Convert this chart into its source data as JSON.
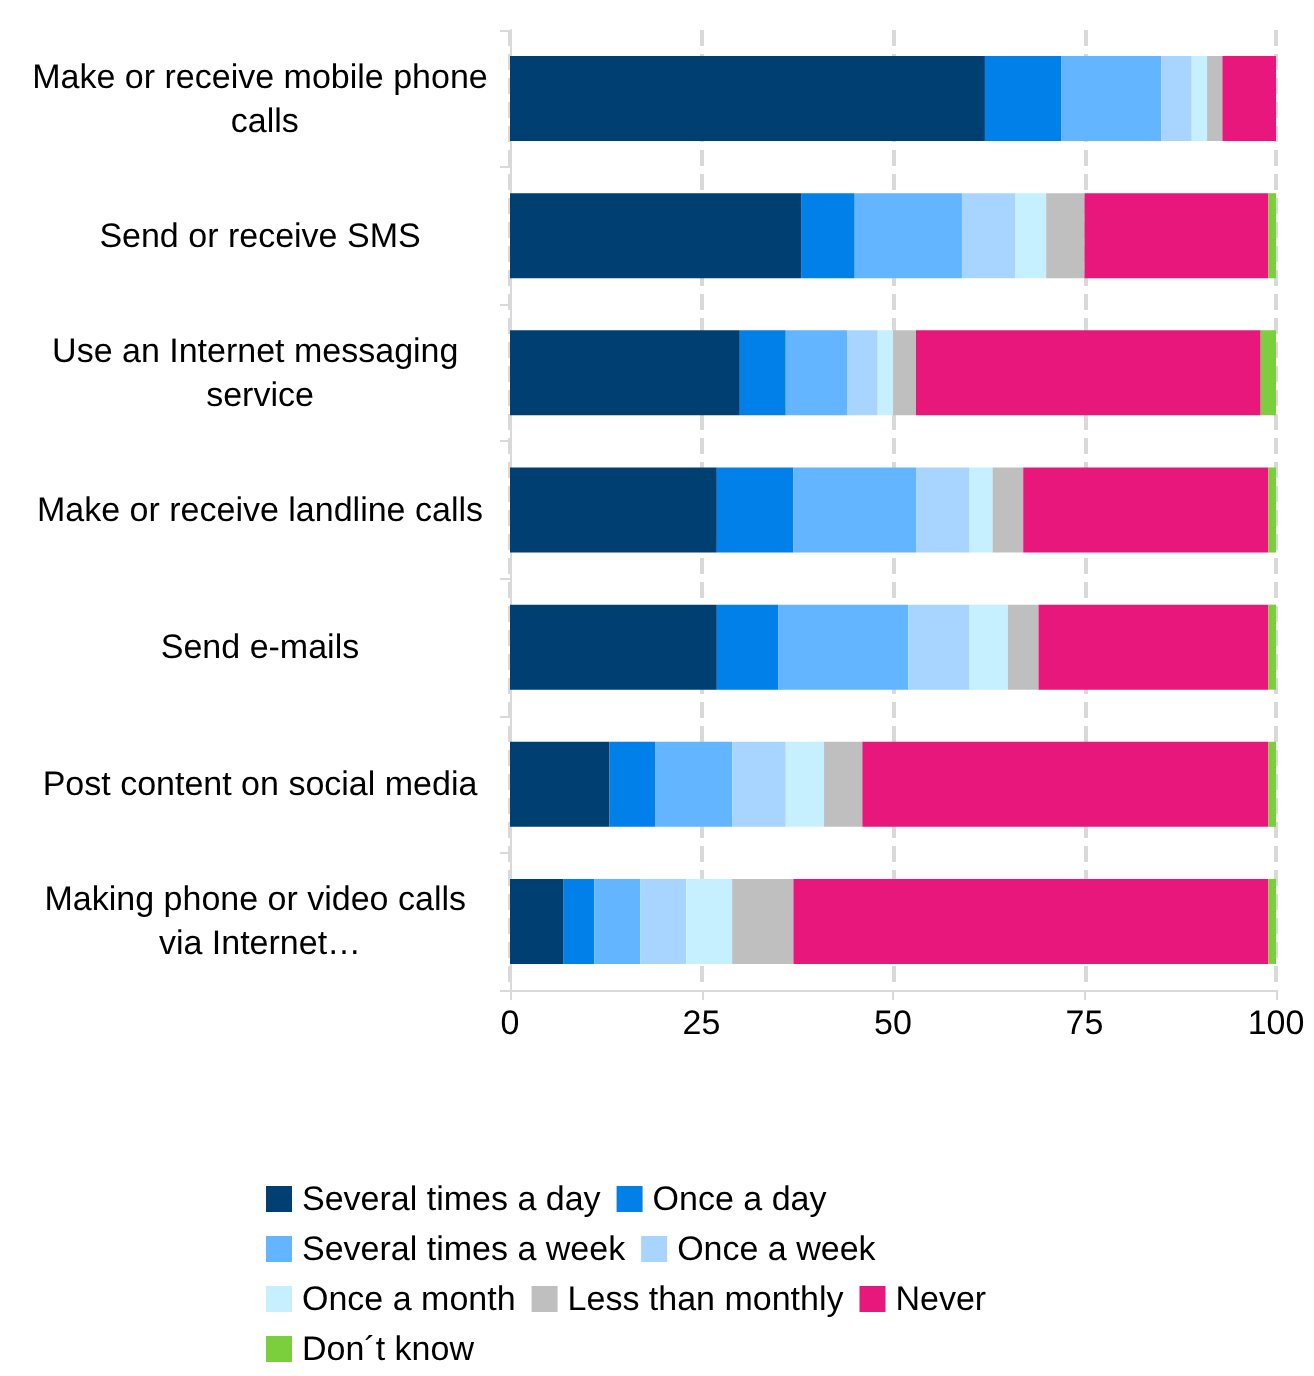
{
  "chart_data": {
    "type": "bar",
    "orientation": "horizontal",
    "stacked": true,
    "categories": [
      "Make or receive mobile phone calls",
      "Send or receive SMS",
      "Use an Internet messaging service",
      "Make or receive landline calls",
      "Send e-mails",
      "Post content on social media",
      "Making phone or video calls via Internet…"
    ],
    "series": [
      {
        "name": "Several times a day",
        "color": "#003f72",
        "values": [
          62,
          38,
          30,
          27,
          27,
          13,
          7
        ]
      },
      {
        "name": "Once a day",
        "color": "#0080e8",
        "values": [
          10,
          7,
          6,
          10,
          8,
          6,
          4
        ]
      },
      {
        "name": "Several times a week",
        "color": "#63b5ff",
        "values": [
          13,
          14,
          8,
          16,
          17,
          10,
          6
        ]
      },
      {
        "name": "Once a week",
        "color": "#a8d5ff",
        "values": [
          4,
          7,
          4,
          7,
          8,
          7,
          6
        ]
      },
      {
        "name": "Once a month",
        "color": "#c6f0ff",
        "values": [
          2,
          4,
          2,
          3,
          5,
          5,
          6
        ]
      },
      {
        "name": "Less than monthly",
        "color": "#bfbfbf",
        "values": [
          2,
          5,
          3,
          4,
          4,
          5,
          8
        ]
      },
      {
        "name": "Never",
        "color": "#e8177b",
        "values": [
          7,
          24,
          45,
          32,
          30,
          53,
          62
        ]
      },
      {
        "name": "Don´t know",
        "color": "#7ccf3c",
        "values": [
          0,
          1,
          2,
          1,
          1,
          1,
          1
        ]
      }
    ],
    "xlim": [
      0,
      100
    ],
    "xticks": [
      0,
      25,
      50,
      75,
      100
    ],
    "grid": "x",
    "legend": "bottom"
  }
}
